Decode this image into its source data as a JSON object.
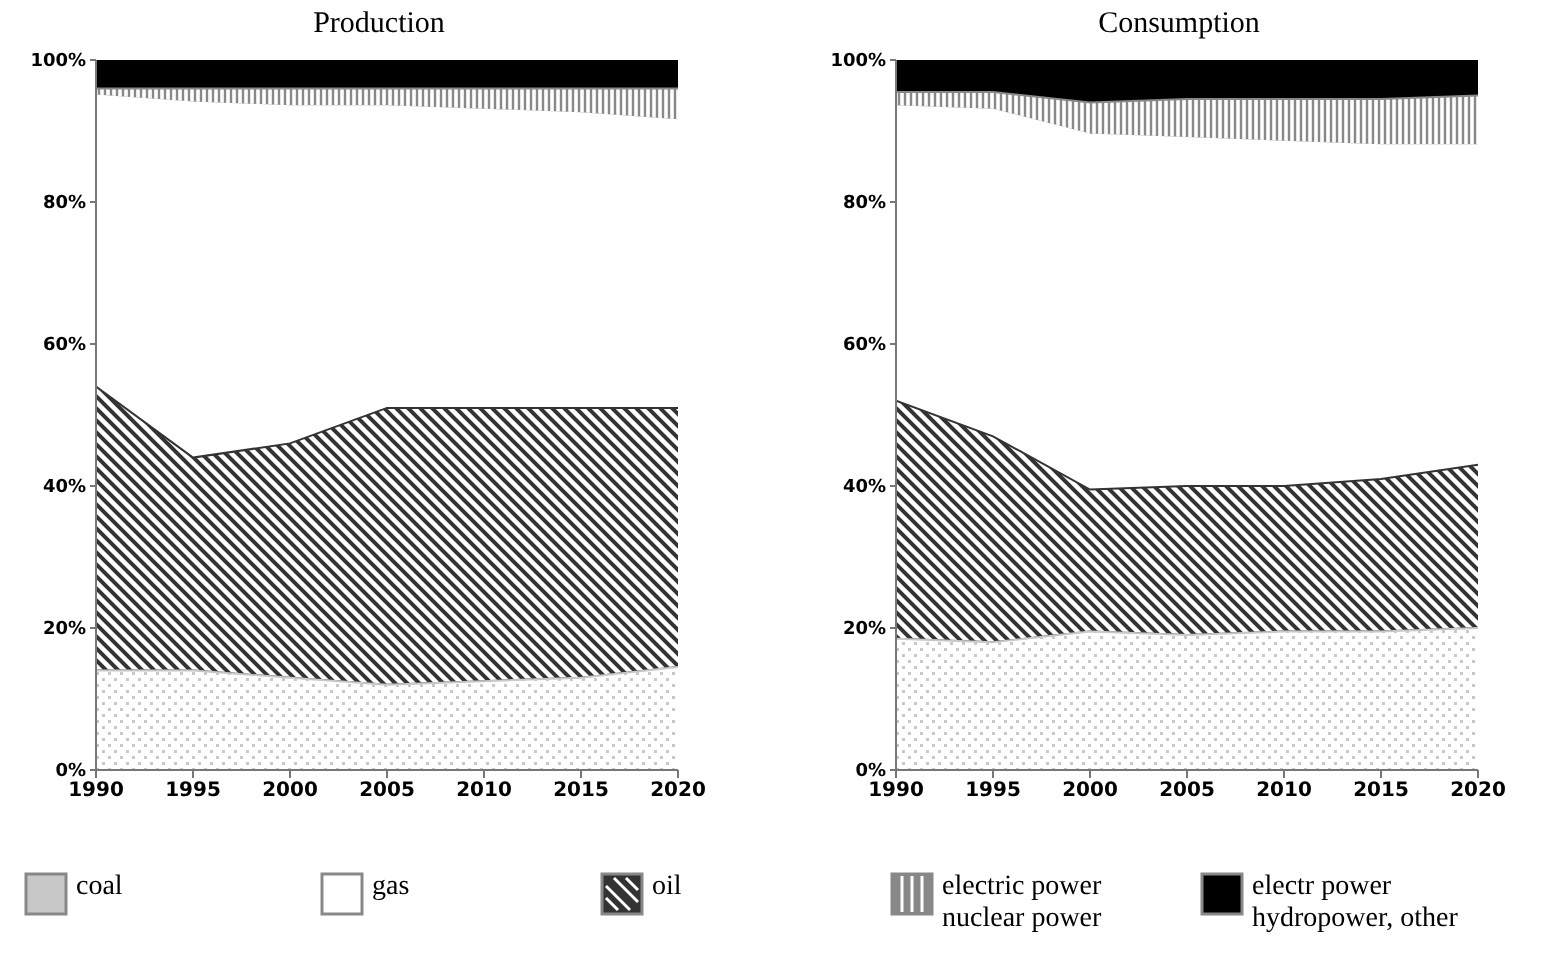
{
  "chart_data": [
    {
      "type": "area",
      "title": "Production",
      "stacked": true,
      "x": [
        1990,
        1995,
        2000,
        2005,
        2010,
        2015,
        2020
      ],
      "xlim": [
        1990,
        2020
      ],
      "xticks": [
        1990,
        1995,
        2000,
        2005,
        2010,
        2015,
        2020
      ],
      "ylim": [
        0,
        100
      ],
      "yticks": [
        {
          "value": 0,
          "label": "0%"
        },
        {
          "value": 20,
          "label": "20%"
        },
        {
          "value": 40,
          "label": "40%"
        },
        {
          "value": 60,
          "label": "60%"
        },
        {
          "value": 80,
          "label": "80%"
        },
        {
          "value": 100,
          "label": "100%"
        }
      ],
      "grid": false,
      "legend": "bottom",
      "series": [
        {
          "name": "coal",
          "color": "#c8c8c8",
          "values": [
            14,
            14,
            13,
            12,
            12.5,
            13,
            14.5
          ]
        },
        {
          "name": "oil",
          "color": "#333333",
          "values": [
            40,
            30,
            33,
            39,
            38.5,
            38,
            36.5
          ]
        },
        {
          "name": "gas",
          "color": "#ffffff",
          "values": [
            41,
            50,
            47.5,
            42.5,
            42,
            41.5,
            40.5
          ]
        },
        {
          "name": "electric power nuclear power",
          "color": "#888888",
          "values": [
            1,
            2,
            2.5,
            2.5,
            3,
            3.5,
            4.5
          ]
        },
        {
          "name": "electr power hydropower, other",
          "color": "#000000",
          "values": [
            4,
            4,
            4,
            4,
            4,
            4,
            4
          ]
        }
      ]
    },
    {
      "type": "area",
      "title": "Consumption",
      "stacked": true,
      "x": [
        1990,
        1995,
        2000,
        2005,
        2010,
        2015,
        2020
      ],
      "xlim": [
        1990,
        2020
      ],
      "xticks": [
        1990,
        1995,
        2000,
        2005,
        2010,
        2015,
        2020
      ],
      "ylim": [
        0,
        100
      ],
      "yticks": [
        {
          "value": 0,
          "label": "0%"
        },
        {
          "value": 20,
          "label": "20%"
        },
        {
          "value": 40,
          "label": "40%"
        },
        {
          "value": 60,
          "label": "60%"
        },
        {
          "value": 80,
          "label": "80%"
        },
        {
          "value": 100,
          "label": "100%"
        }
      ],
      "grid": false,
      "legend": "bottom",
      "series": [
        {
          "color": "#c8c8c8",
          "values": [
            18.5,
            18,
            19.5,
            19,
            19.5,
            19.5,
            20
          ]
        },
        {
          "color": "#333333",
          "values": [
            33.5,
            29,
            20,
            21,
            20.5,
            21.5,
            23
          ]
        },
        {
          "color": "#ffffff",
          "values": [
            41.5,
            46,
            50,
            49,
            48.5,
            47,
            45
          ]
        },
        {
          "color": "#888888",
          "values": [
            2,
            2.5,
            4.5,
            5.5,
            6,
            6.5,
            7
          ]
        },
        {
          "color": "#000000",
          "values": [
            4.5,
            4.5,
            6,
            5.5,
            5.5,
            5.5,
            5
          ]
        }
      ]
    }
  ]
}
